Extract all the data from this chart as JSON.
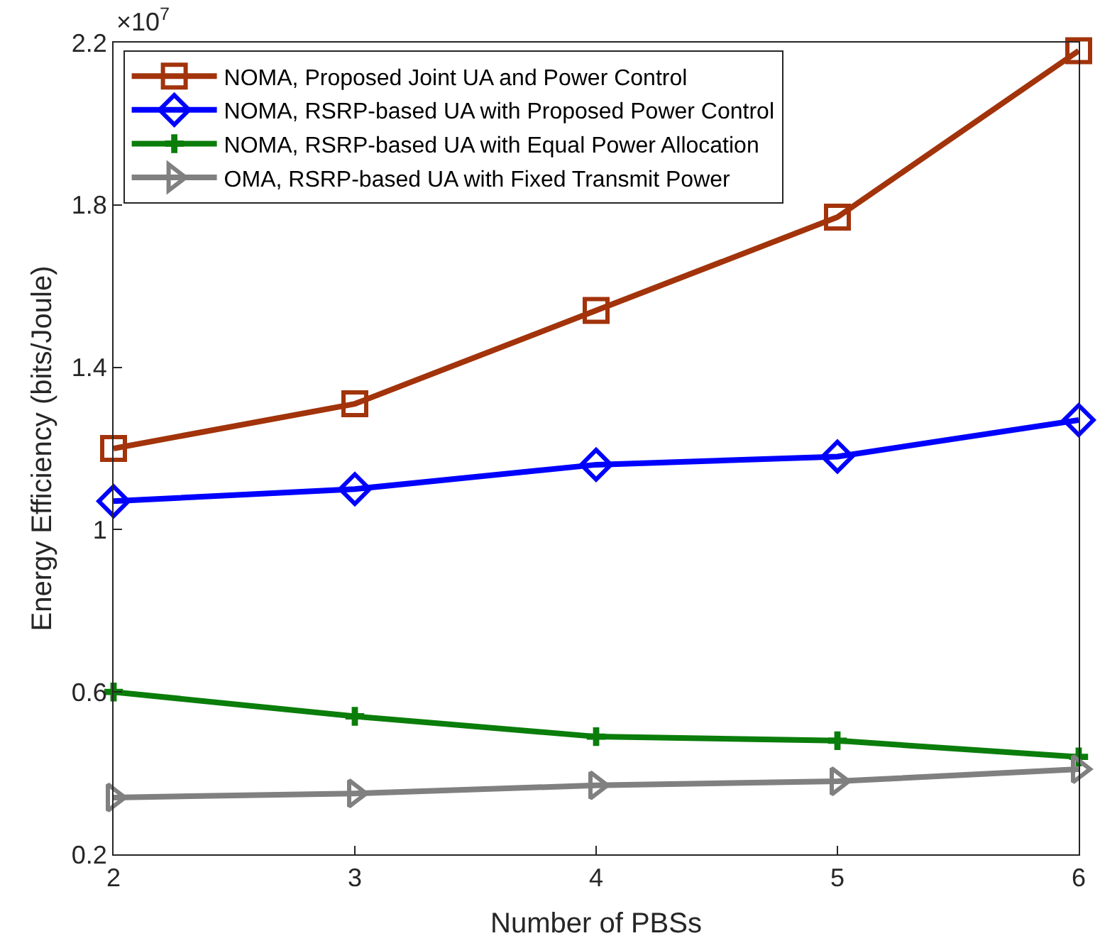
{
  "chart_data": {
    "type": "line",
    "xlabel": "Number of PBSs",
    "ylabel": "Energy Efficiency (bits/Joule)",
    "annotations": [
      "×10$^{7}$"
    ],
    "x": [
      2,
      3,
      4,
      5,
      6
    ],
    "series": [
      {
        "name": "NOMA, Proposed Joint UA and Power Control",
        "color": "#a2330a",
        "marker": "square",
        "values": [
          1.2,
          1.31,
          1.54,
          1.77,
          2.18
        ]
      },
      {
        "name": "NOMA, RSRP-based UA with Proposed Power Control",
        "color": "#0000ff",
        "marker": "diamond",
        "values": [
          1.07,
          1.1,
          1.16,
          1.18,
          1.27
        ]
      },
      {
        "name": "NOMA, RSRP-based UA with Equal Power Allocation",
        "color": "#0a7d0a",
        "marker": "cross",
        "values": [
          0.6,
          0.54,
          0.49,
          0.48,
          0.44
        ]
      },
      {
        "name": "OMA, RSRP-based UA with Fixed Transmit Power",
        "color": "#808080",
        "marker": "triangle",
        "values": [
          0.34,
          0.35,
          0.37,
          0.38,
          0.41
        ]
      }
    ],
    "xlim": [
      2,
      6
    ],
    "xticks": [
      2,
      3,
      4,
      5,
      6
    ],
    "ylim": [
      0.2,
      2.2
    ],
    "yticks": [
      0.2,
      0.6,
      1,
      1.4,
      1.8,
      2.2
    ],
    "legend": "top left",
    "line_style": "solid"
  }
}
